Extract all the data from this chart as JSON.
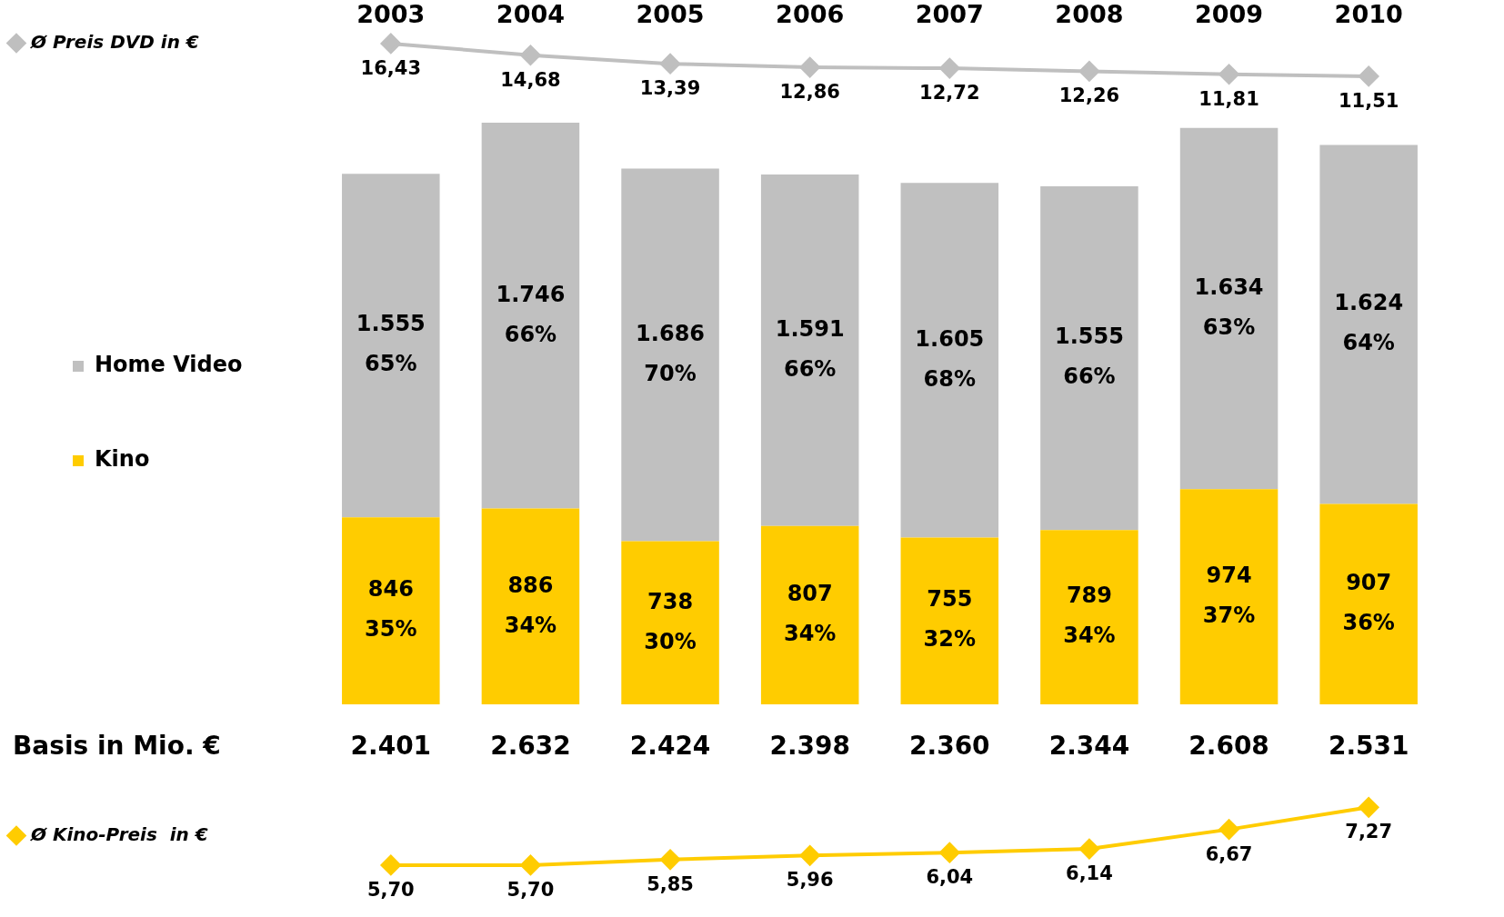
{
  "chart_data": [
    {
      "type": "line",
      "categories": [
        "2003",
        "2004",
        "2005",
        "2006",
        "2007",
        "2008",
        "2009",
        "2010"
      ],
      "tick_labels": "x",
      "legend": "left",
      "marker": "diamond",
      "grid": false,
      "series": [
        {
          "name": "Ø Preis DVD in €",
          "color": "#bfbfbf",
          "values": [
            16.43,
            14.68,
            13.39,
            12.86,
            12.72,
            12.26,
            11.81,
            11.51
          ],
          "value_labels": [
            "16,43",
            "14,68",
            "13,39",
            "12,86",
            "12,72",
            "12,26",
            "11,81",
            "11,51"
          ]
        }
      ]
    },
    {
      "type": "bar",
      "stacked": true,
      "categories": [
        "2003",
        "2004",
        "2005",
        "2006",
        "2007",
        "2008",
        "2009",
        "2010"
      ],
      "tick_labels": false,
      "legend": "left",
      "grid": false,
      "series": [
        {
          "name": "Kino",
          "color": "#ffcc00",
          "values": [
            846,
            886,
            738,
            807,
            755,
            789,
            974,
            907
          ],
          "value_labels": [
            "846\n35%",
            "886\n34%",
            "738\n30%",
            "807\n34%",
            "755\n32%",
            "789\n34%",
            "974\n37%",
            "907\n36%"
          ]
        },
        {
          "name": "Home Video",
          "color": "#c0c0c0",
          "values": [
            1555,
            1746,
            1686,
            1591,
            1605,
            1555,
            1634,
            1624
          ],
          "value_labels": [
            "1.555\n65%",
            "1.746\n66%",
            "1.686\n70%",
            "1.591\n66%",
            "1.605\n68%",
            "1.555\n66%",
            "1.634\n63%",
            "1.624\n64%"
          ]
        }
      ],
      "totals": [
        "2.401",
        "2.632",
        "2.424",
        "2.398",
        "2.360",
        "2.344",
        "2.608",
        "2.531"
      ],
      "annotations": [
        "Basis in Mio. €"
      ]
    },
    {
      "type": "line",
      "categories": [
        "2003",
        "2004",
        "2005",
        "2006",
        "2007",
        "2008",
        "2009",
        "2010"
      ],
      "tick_labels": false,
      "legend": "left",
      "marker": "diamond",
      "grid": false,
      "series": [
        {
          "name": "Ø Kino-Preis  in €",
          "color": "#ffcc00",
          "values": [
            5.7,
            5.7,
            5.85,
            5.96,
            6.04,
            6.14,
            6.67,
            7.27
          ],
          "value_labels": [
            "5,70",
            "5,70",
            "5,85",
            "5,96",
            "6,04",
            "6,14",
            "6,67",
            "7,27"
          ]
        }
      ]
    }
  ]
}
